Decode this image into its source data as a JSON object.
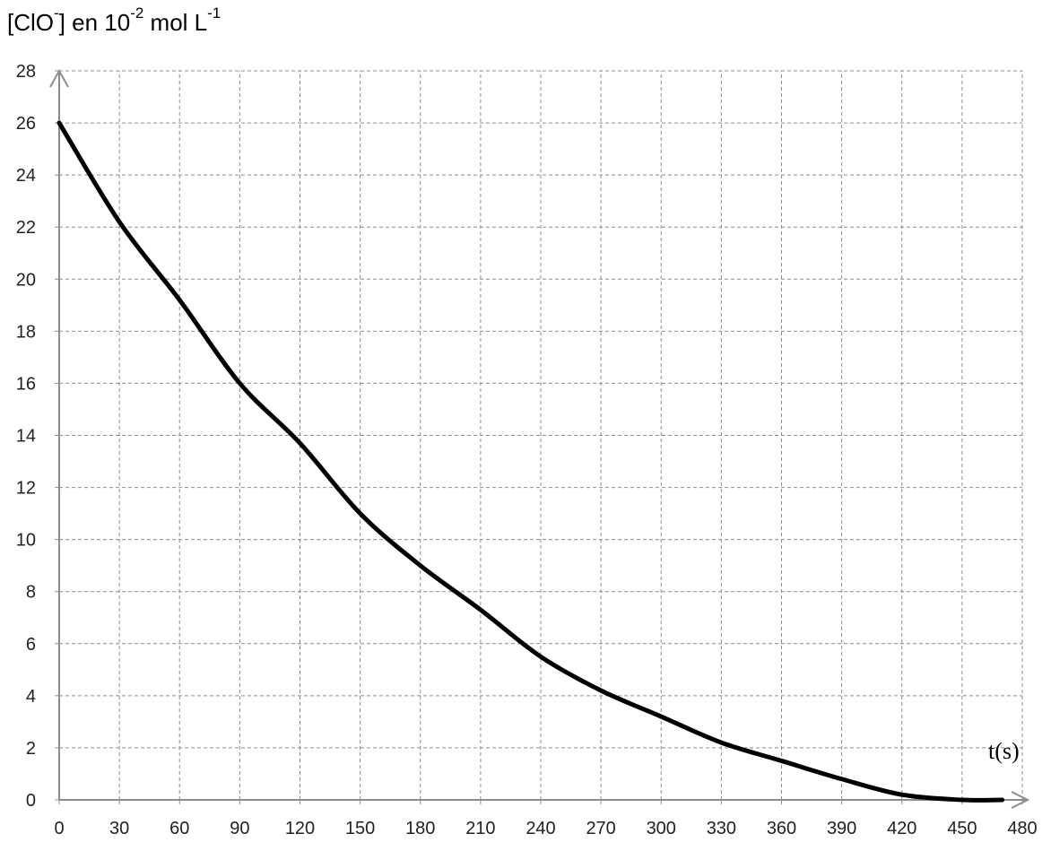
{
  "chart_data": {
    "type": "line",
    "ylabel": {
      "parts": [
        "[ClO",
        "-",
        "] en 10",
        "-2",
        " mol L",
        "-1"
      ]
    },
    "xlabel": "t(s)",
    "x_ticks": [
      "0",
      "30",
      "60",
      "90",
      "120",
      "150",
      "180",
      "210",
      "240",
      "270",
      "300",
      "330",
      "360",
      "390",
      "420",
      "450",
      "480"
    ],
    "y_ticks": [
      "0",
      "2",
      "4",
      "6",
      "8",
      "10",
      "12",
      "14",
      "16",
      "18",
      "20",
      "22",
      "24",
      "26",
      "28"
    ],
    "xlim": [
      0,
      480
    ],
    "ylim": [
      0,
      28
    ],
    "grid": true,
    "series": [
      {
        "x": [
          0,
          30,
          60,
          90,
          120,
          150,
          180,
          210,
          240,
          270,
          300,
          330,
          360,
          390,
          420,
          450,
          470
        ],
        "values": [
          26,
          22.2,
          19.2,
          16,
          13.7,
          11,
          9,
          7.3,
          5.5,
          4.2,
          3.2,
          2.2,
          1.5,
          0.8,
          0.2,
          0,
          0
        ]
      }
    ]
  }
}
